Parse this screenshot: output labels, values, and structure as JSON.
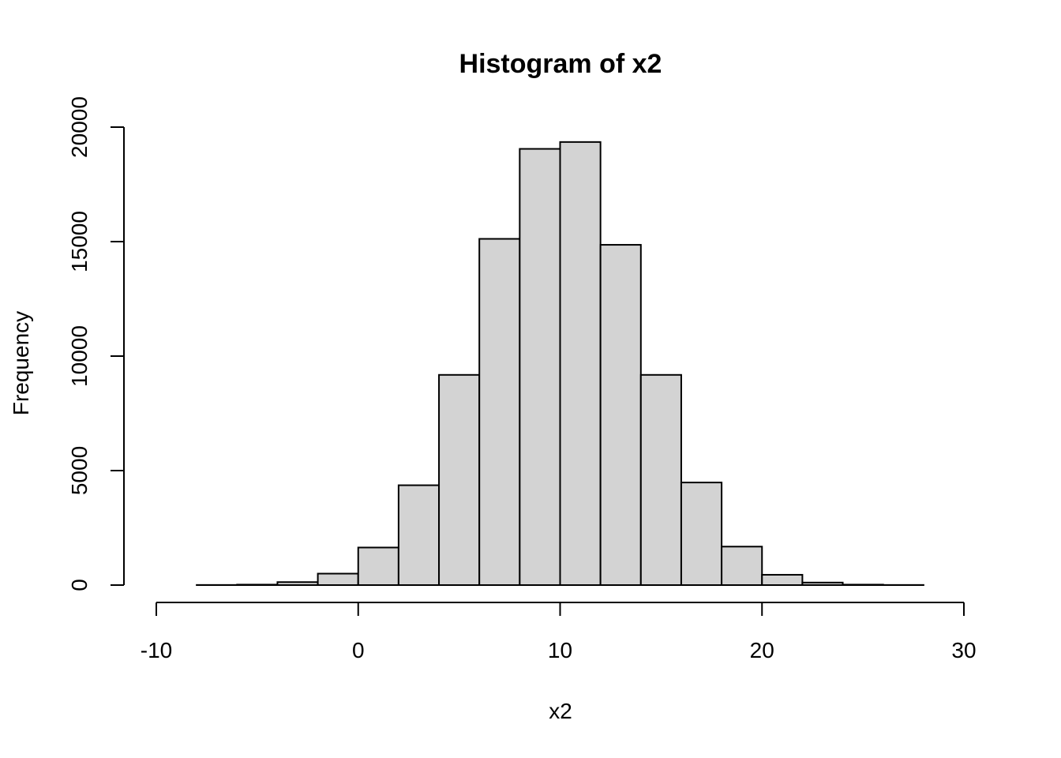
{
  "chart_data": {
    "type": "bar",
    "title": "Histogram of x2",
    "xlabel": "x2",
    "ylabel": "Frequency",
    "xlim": [
      -10,
      30
    ],
    "ylim": [
      0,
      20000
    ],
    "x_ticks": [
      "-10",
      "0",
      "10",
      "20",
      "30"
    ],
    "x_tick_values": [
      -10,
      0,
      10,
      20,
      30
    ],
    "y_ticks": [
      "0",
      "5000",
      "10000",
      "15000",
      "20000"
    ],
    "y_tick_values": [
      0,
      5000,
      10000,
      15000,
      20000
    ],
    "bins": [
      {
        "start": -8,
        "end": -6,
        "count": 5
      },
      {
        "start": -6,
        "end": -4,
        "count": 20
      },
      {
        "start": -4,
        "end": -2,
        "count": 130
      },
      {
        "start": -2,
        "end": 0,
        "count": 500
      },
      {
        "start": 0,
        "end": 2,
        "count": 1640
      },
      {
        "start": 2,
        "end": 4,
        "count": 4360
      },
      {
        "start": 4,
        "end": 6,
        "count": 9180
      },
      {
        "start": 6,
        "end": 8,
        "count": 15120
      },
      {
        "start": 8,
        "end": 10,
        "count": 19050
      },
      {
        "start": 10,
        "end": 12,
        "count": 19350
      },
      {
        "start": 12,
        "end": 14,
        "count": 14860
      },
      {
        "start": 14,
        "end": 16,
        "count": 9180
      },
      {
        "start": 16,
        "end": 18,
        "count": 4480
      },
      {
        "start": 18,
        "end": 20,
        "count": 1680
      },
      {
        "start": 20,
        "end": 22,
        "count": 450
      },
      {
        "start": 22,
        "end": 24,
        "count": 110
      },
      {
        "start": 24,
        "end": 26,
        "count": 20
      },
      {
        "start": 26,
        "end": 28,
        "count": 5
      }
    ],
    "grid": false,
    "colors": {
      "bar_fill": "#d3d3d3",
      "bar_stroke": "#000000",
      "axis": "#000000"
    }
  }
}
